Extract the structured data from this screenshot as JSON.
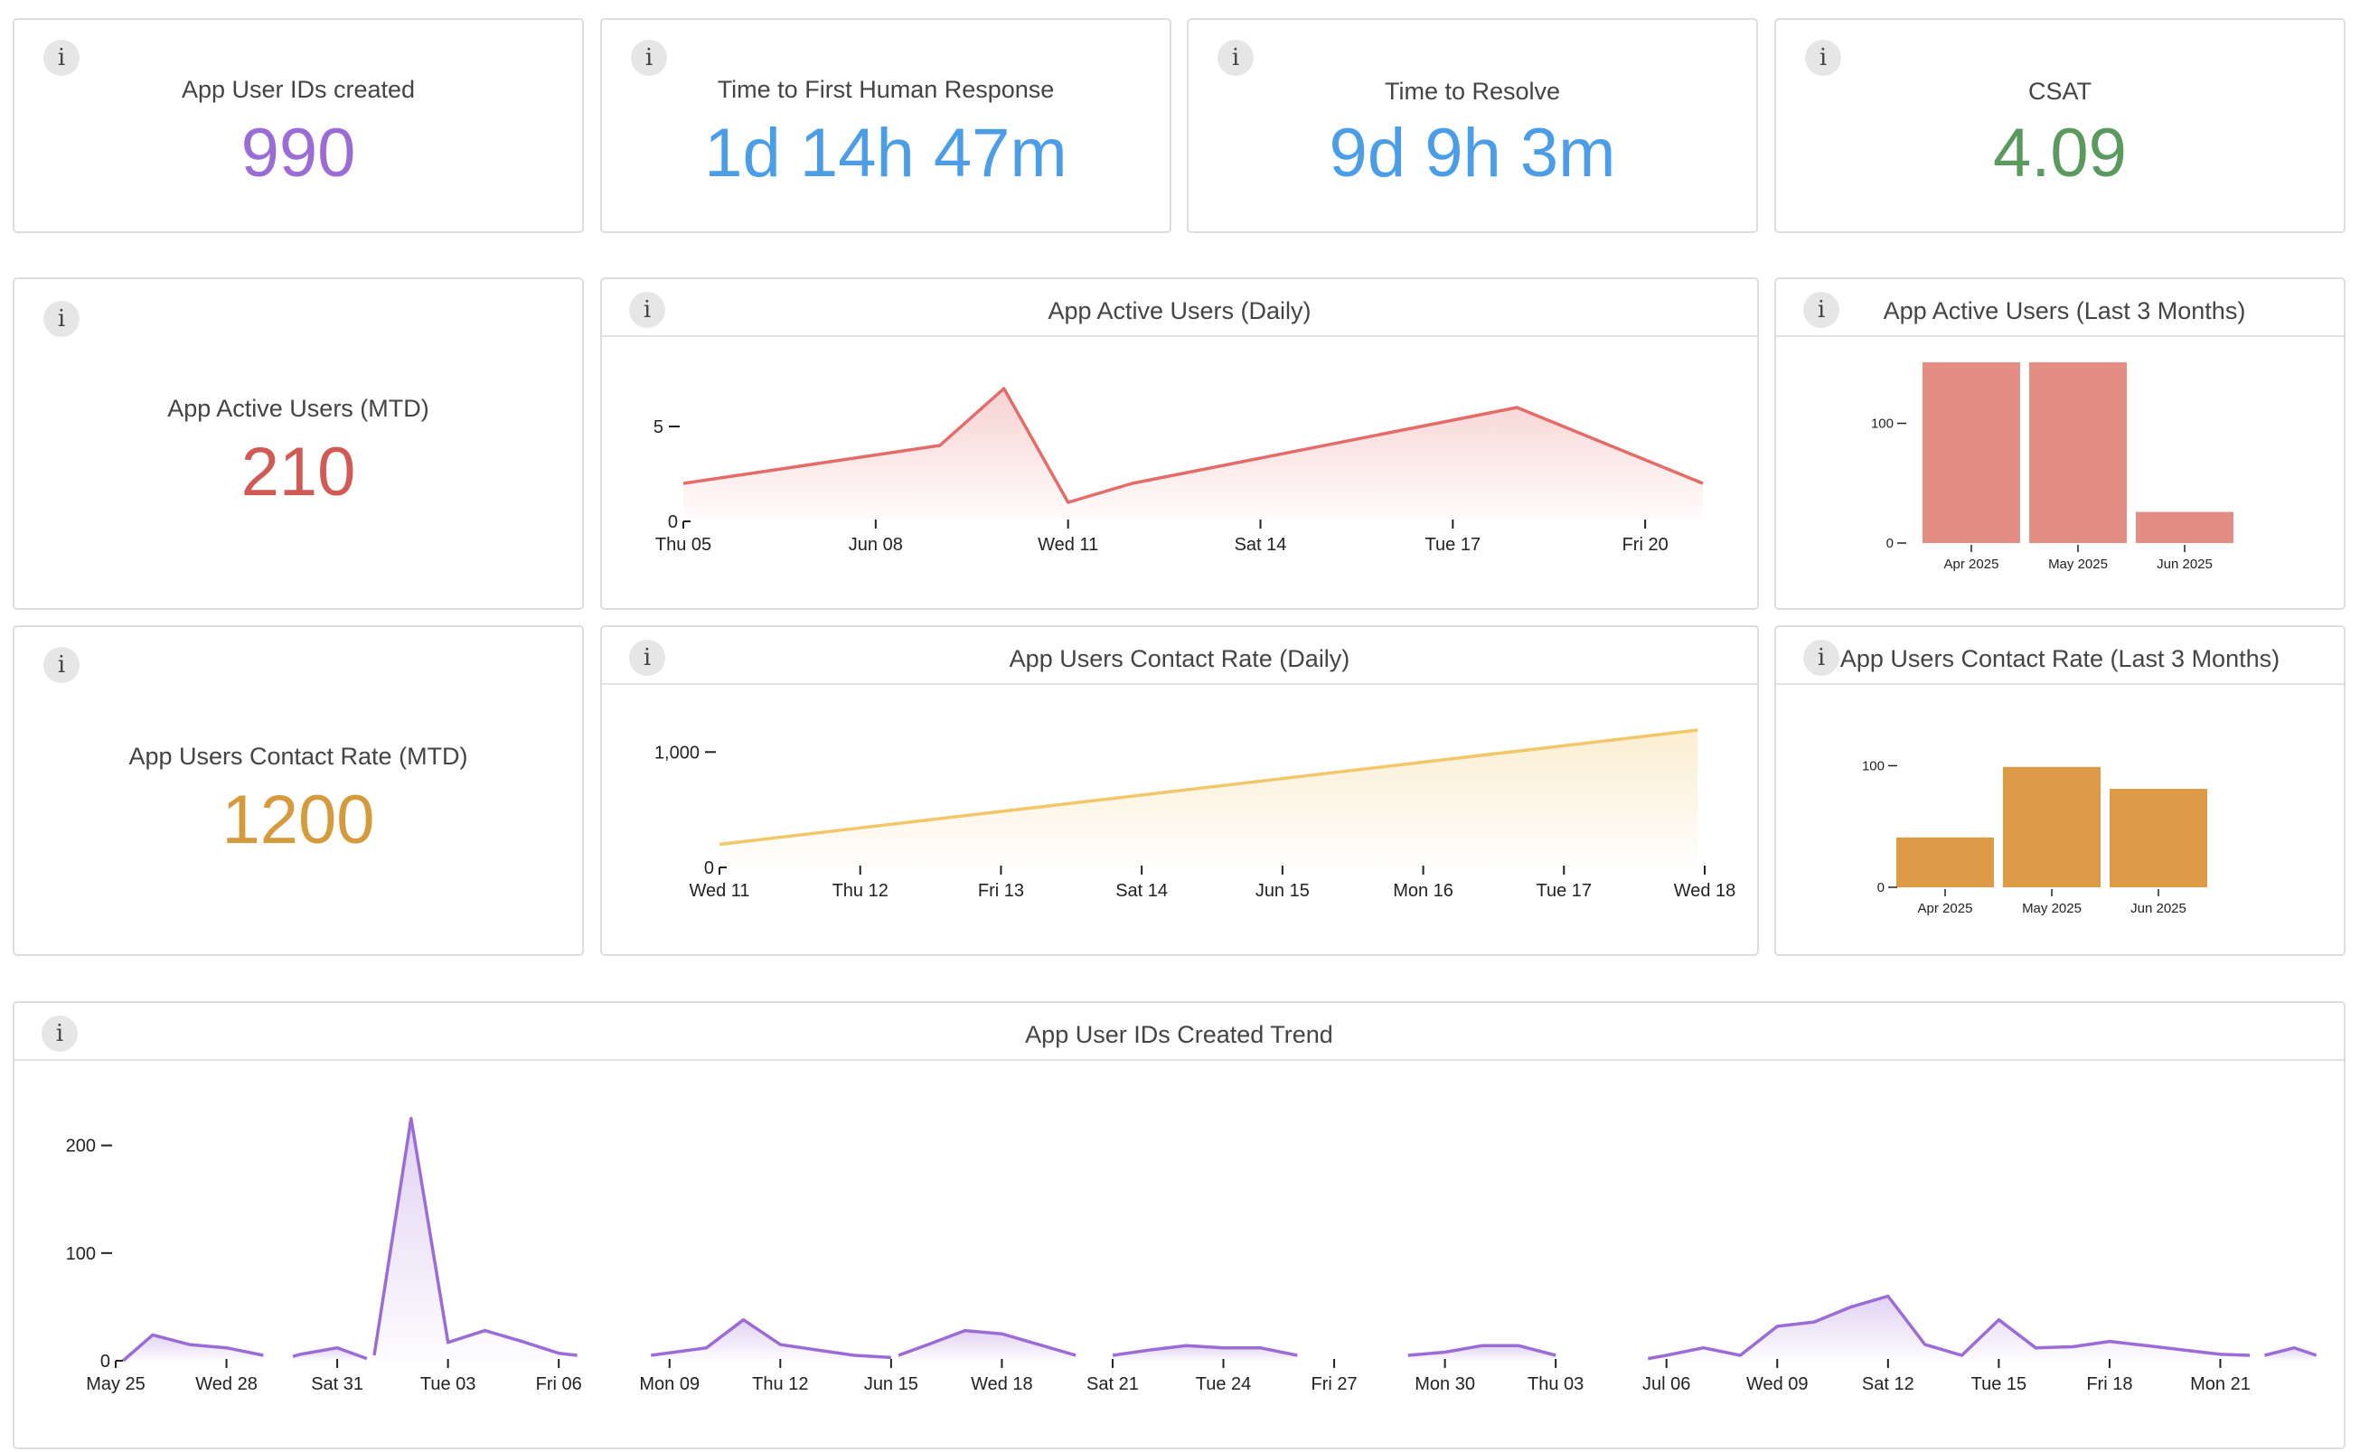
{
  "kpis": {
    "app_user_ids": {
      "label": "App User IDs created",
      "value": "990",
      "color": "#9b6cd6"
    },
    "first_response": {
      "label": "Time to First Human Response",
      "value": "1d 14h 47m",
      "color": "#4a9de6"
    },
    "resolve": {
      "label": "Time to Resolve",
      "value": "9d 9h 3m",
      "color": "#4a9de6"
    },
    "csat": {
      "label": "CSAT",
      "value": "4.09",
      "color": "#5a9a5e"
    },
    "active_mtd": {
      "label": "App Active Users (MTD)",
      "value": "210",
      "color": "#d25a55"
    },
    "contact_mtd": {
      "label": "App Users Contact Rate (MTD)",
      "value": "1200",
      "color": "#d59a3c"
    }
  },
  "info_icon": "info-icon",
  "chart_data": [
    {
      "id": "active_daily",
      "type": "area",
      "title": "App Active Users (Daily)",
      "color": "#e46b68",
      "x": [
        5,
        10.3,
        9.3,
        10.0,
        11.0,
        18.3,
        20.3
      ],
      "xlabels": [
        "Thu 05",
        "Jun 08",
        "Wed 11",
        "Sat 14",
        "Tue 17",
        "Fri 20"
      ],
      "xticks": [
        5,
        8,
        11,
        14,
        17,
        20
      ],
      "points": [
        [
          5,
          2
        ],
        [
          9,
          4
        ],
        [
          10,
          7
        ],
        [
          11,
          1
        ],
        [
          12,
          2
        ],
        [
          18,
          6
        ],
        [
          20.9,
          2
        ]
      ],
      "yticks": [
        0,
        5
      ],
      "ylim": [
        0,
        8
      ]
    },
    {
      "id": "active_3m",
      "type": "bar",
      "title": "App Active Users (Last 3 Months)",
      "color": "#e38d85",
      "categories": [
        "Apr 2025",
        "May 2025",
        "Jun 2025"
      ],
      "values": [
        151,
        151,
        26
      ],
      "yticks": [
        0,
        100
      ],
      "ylim": [
        0,
        160
      ]
    },
    {
      "id": "contact_daily",
      "type": "area",
      "title": "App Users Contact Rate (Daily)",
      "color": "#f1c76a",
      "xlabels": [
        "Wed 11",
        "Thu 12",
        "Fri 13",
        "Sat 14",
        "Jun 15",
        "Mon 16",
        "Tue 17",
        "Wed 18"
      ],
      "xticks": [
        11,
        12,
        13,
        14,
        15,
        16,
        17,
        18
      ],
      "points": [
        [
          11,
          200
        ],
        [
          17.95,
          1190
        ]
      ],
      "yticks": [
        0,
        1000
      ],
      "ytick_labels": [
        "0",
        "1,000"
      ],
      "ylim": [
        0,
        1300
      ]
    },
    {
      "id": "contact_3m",
      "type": "bar",
      "title": "App Users Contact Rate (Last 3 Months)",
      "color": "#de9b47",
      "categories": [
        "Apr 2025",
        "May 2025",
        "Jun 2025"
      ],
      "values": [
        41,
        99,
        81
      ],
      "yticks": [
        0,
        100
      ],
      "ylim": [
        0,
        110
      ]
    },
    {
      "id": "ids_trend",
      "type": "area",
      "title": "App User IDs Created Trend",
      "color": "#9b6cd6",
      "xlabels": [
        "May 25",
        "Wed 28",
        "Sat 31",
        "Tue 03",
        "Fri 06",
        "Mon 09",
        "Thu 12",
        "Jun 15",
        "Wed 18",
        "Sat 21",
        "Tue 24",
        "Fri 27",
        "Mon 30",
        "Thu 03",
        "Jul 06",
        "Wed 09",
        "Sat 12",
        "Tue 15",
        "Fri 18",
        "Mon 21"
      ],
      "xticks": [
        0,
        3,
        6,
        9,
        12,
        15,
        18,
        21,
        24,
        27,
        30,
        33,
        36,
        39,
        42,
        45,
        48,
        51,
        54,
        57
      ],
      "segments": [
        [
          [
            0.2,
            0
          ],
          [
            1,
            24
          ],
          [
            2,
            15
          ],
          [
            3,
            12
          ],
          [
            4,
            5
          ]
        ],
        [
          [
            4.8,
            4
          ],
          [
            5,
            6
          ],
          [
            6,
            12
          ],
          [
            6.8,
            2
          ]
        ],
        [
          [
            7,
            5
          ],
          [
            8,
            225
          ],
          [
            9,
            17
          ],
          [
            10,
            28
          ],
          [
            11,
            18
          ],
          [
            12,
            7
          ],
          [
            12.5,
            5
          ]
        ],
        [
          [
            14.5,
            5
          ],
          [
            16,
            12
          ],
          [
            17,
            38
          ],
          [
            18,
            15
          ],
          [
            19,
            10
          ],
          [
            20,
            5
          ],
          [
            21,
            3
          ]
        ],
        [
          [
            21.2,
            5
          ],
          [
            22,
            15
          ],
          [
            23,
            28
          ],
          [
            24,
            25
          ],
          [
            25,
            15
          ],
          [
            26,
            5
          ]
        ],
        [
          [
            27,
            5
          ],
          [
            28,
            10
          ],
          [
            29,
            14
          ],
          [
            30,
            12
          ],
          [
            31,
            12
          ],
          [
            32,
            5
          ]
        ],
        [
          [
            35,
            5
          ],
          [
            36,
            8
          ],
          [
            37,
            14
          ],
          [
            38,
            14
          ],
          [
            39,
            5
          ]
        ],
        [
          [
            41.5,
            2
          ],
          [
            42,
            5
          ],
          [
            43,
            12
          ],
          [
            44,
            5
          ],
          [
            45,
            32
          ],
          [
            46,
            36
          ],
          [
            47,
            50
          ],
          [
            48,
            60
          ],
          [
            49,
            15
          ],
          [
            50,
            5
          ],
          [
            51,
            38
          ],
          [
            52,
            12
          ],
          [
            53,
            13
          ],
          [
            54,
            18
          ],
          [
            55,
            14
          ],
          [
            56,
            10
          ],
          [
            57,
            6
          ],
          [
            57.8,
            5
          ]
        ],
        [
          [
            58.2,
            5
          ],
          [
            59,
            12
          ],
          [
            59.6,
            5
          ]
        ]
      ],
      "yticks": [
        0,
        100,
        200
      ],
      "ylim": [
        0,
        240
      ]
    }
  ]
}
